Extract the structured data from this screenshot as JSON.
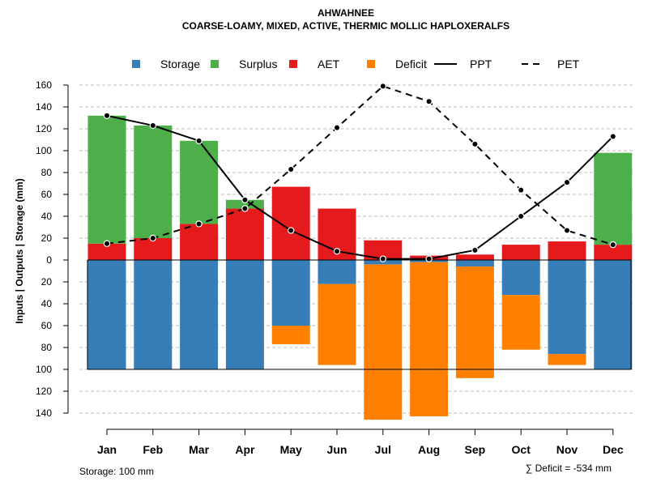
{
  "chart_data": {
    "type": "bar",
    "title": "AHWAHNEE",
    "subtitle": "COARSE-LOAMY, MIXED, ACTIVE, THERMIC MOLLIC HAPLOXERALFS",
    "ylabel": "Inputs | Outputs | Storage    (mm)",
    "xlabel": "",
    "ylim": [
      -150,
      165
    ],
    "grid": true,
    "categories": [
      "Jan",
      "Feb",
      "Mar",
      "Apr",
      "May",
      "Jun",
      "Jul",
      "Aug",
      "Sep",
      "Oct",
      "Nov",
      "Dec"
    ],
    "ticks": [
      {
        "value": 160,
        "label": "160"
      },
      {
        "value": 140,
        "label": "140"
      },
      {
        "value": 120,
        "label": "120"
      },
      {
        "value": 100,
        "label": "100"
      },
      {
        "value": 80,
        "label": "80"
      },
      {
        "value": 60,
        "label": "60"
      },
      {
        "value": 40,
        "label": "40"
      },
      {
        "value": 20,
        "label": "20"
      },
      {
        "value": 0,
        "label": "0"
      },
      {
        "value": -20,
        "label": "20"
      },
      {
        "value": -40,
        "label": "40"
      },
      {
        "value": -60,
        "label": "60"
      },
      {
        "value": -80,
        "label": "80"
      },
      {
        "value": -100,
        "label": "100"
      },
      {
        "value": -120,
        "label": "120"
      },
      {
        "value": -140,
        "label": "140"
      }
    ],
    "series": [
      {
        "name": "Storage",
        "color": "#377EB8",
        "values": [
          100,
          100,
          100,
          100,
          60,
          22,
          4,
          2,
          6,
          32,
          86,
          100
        ]
      },
      {
        "name": "Surplus",
        "color": "#4DAF4A",
        "values": [
          117,
          103,
          76,
          8,
          0,
          0,
          0,
          0,
          0,
          0,
          0,
          84
        ]
      },
      {
        "name": "AET",
        "color": "#E41A1C",
        "values": [
          15,
          20,
          33,
          47,
          67,
          47,
          18,
          4,
          5,
          14,
          17,
          14
        ]
      },
      {
        "name": "Deficit",
        "color": "#FF7F00",
        "values": [
          0,
          0,
          0,
          0,
          17,
          74,
          142,
          141,
          102,
          50,
          10,
          0
        ]
      },
      {
        "name": "PPT",
        "color": "#000000",
        "style": "solid",
        "values": [
          132,
          123,
          109,
          55,
          27,
          8,
          1,
          1,
          9,
          40,
          71,
          113
        ]
      },
      {
        "name": "PET",
        "color": "#000000",
        "style": "dashed",
        "values": [
          15,
          20,
          33,
          47,
          83,
          121,
          159,
          145,
          106,
          64,
          27,
          14
        ]
      }
    ],
    "legend": {
      "position": "top",
      "items": [
        {
          "label": "Storage",
          "symbol": "square",
          "color": "#377EB8"
        },
        {
          "label": "Surplus",
          "symbol": "square",
          "color": "#4DAF4A"
        },
        {
          "label": "AET",
          "symbol": "square",
          "color": "#E41A1C"
        },
        {
          "label": "Deficit",
          "symbol": "square",
          "color": "#FF7F00"
        },
        {
          "label": "PPT",
          "symbol": "solid-line",
          "color": "#000000"
        },
        {
          "label": "PET",
          "symbol": "dashed-line",
          "color": "#000000"
        }
      ]
    },
    "storage_note": "Storage: 100 mm",
    "deficit_note": "∑ Deficit = -534 mm"
  }
}
